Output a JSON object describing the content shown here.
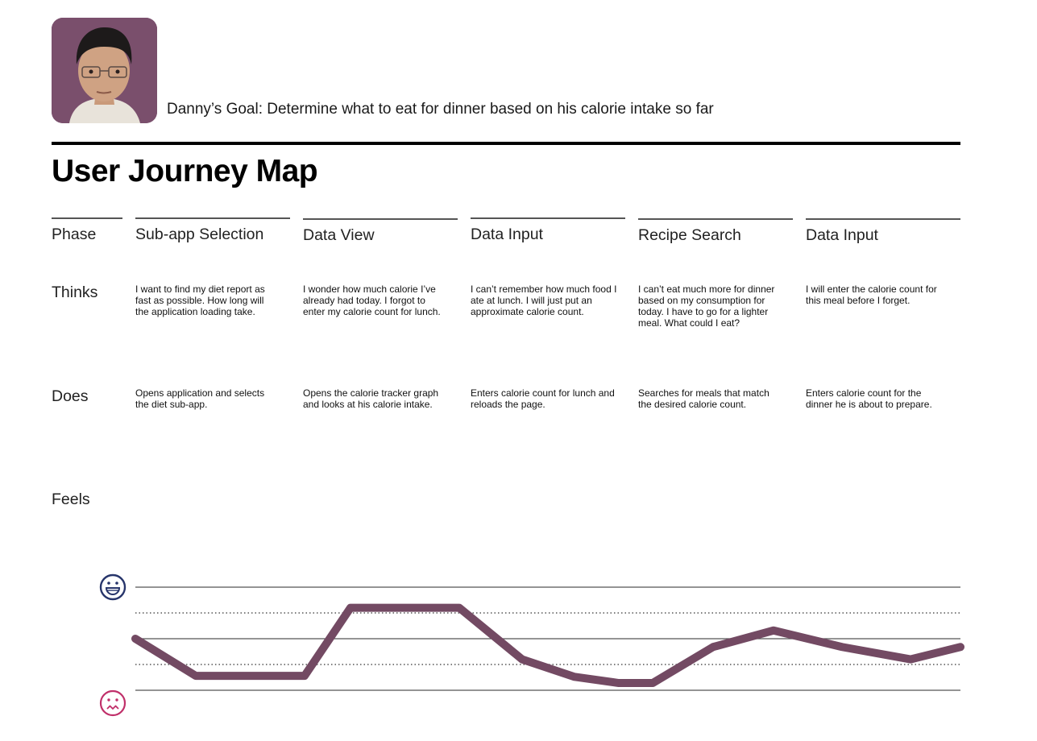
{
  "persona": {
    "goal_text": "Danny’s Goal: Determine what to eat for dinner based on his calorie intake so far"
  },
  "title": "User Journey Map",
  "row_labels": {
    "phase": "Phase",
    "thinks": "Thinks",
    "does": "Does",
    "feels": "Feels"
  },
  "columns": [
    {
      "phase": "Sub-app Selection",
      "thinks": "I want to find my diet report as fast as possible. How long will the application loading take.",
      "does": "Opens application and selects the diet sub-app."
    },
    {
      "phase": "Data View",
      "thinks": "I wonder how much calorie I’ve already had today. I forgot to enter my calorie count for lunch.",
      "does": "Opens the calorie tracker graph and looks at his calorie intake."
    },
    {
      "phase": "Data Input",
      "thinks": "I can’t remember how much food I ate at lunch. I will just put an approximate calorie count.",
      "does": "Enters calorie count for lunch and reloads the page."
    },
    {
      "phase": "Recipe Search",
      "thinks": "I can’t eat much more for dinner based on my consumption for today. I have to go for a lighter meal. What could I eat?",
      "does": "Searches for meals that match the desired calorie count."
    },
    {
      "phase": "Data Input",
      "thinks": "I will enter the calorie count for this meal before I forget.",
      "does": "Enters calorie count for the dinner he is about to prepare."
    }
  ],
  "chart_data": {
    "type": "line",
    "y_scale": "emotion level, 0 = sad, 1 = happy",
    "ylim": [
      0,
      1
    ],
    "grid": "solid lines at 0, 0.5, 1; dotted lines at 0.25, 0.75",
    "y_icons": {
      "top": "happy-face-icon",
      "bottom": "sad-face-icon"
    },
    "series": [
      {
        "values": [
          0.5,
          0.14,
          0.14,
          0.8,
          0.8,
          0.3,
          0.13,
          0.07,
          0.07,
          0.42,
          0.58,
          0.42,
          0.3,
          0.42
        ]
      }
    ],
    "colors": {
      "line": "#734a63",
      "happy_icon": "#27356b",
      "sad_icon": "#c0306a",
      "grid": "#555555"
    }
  }
}
